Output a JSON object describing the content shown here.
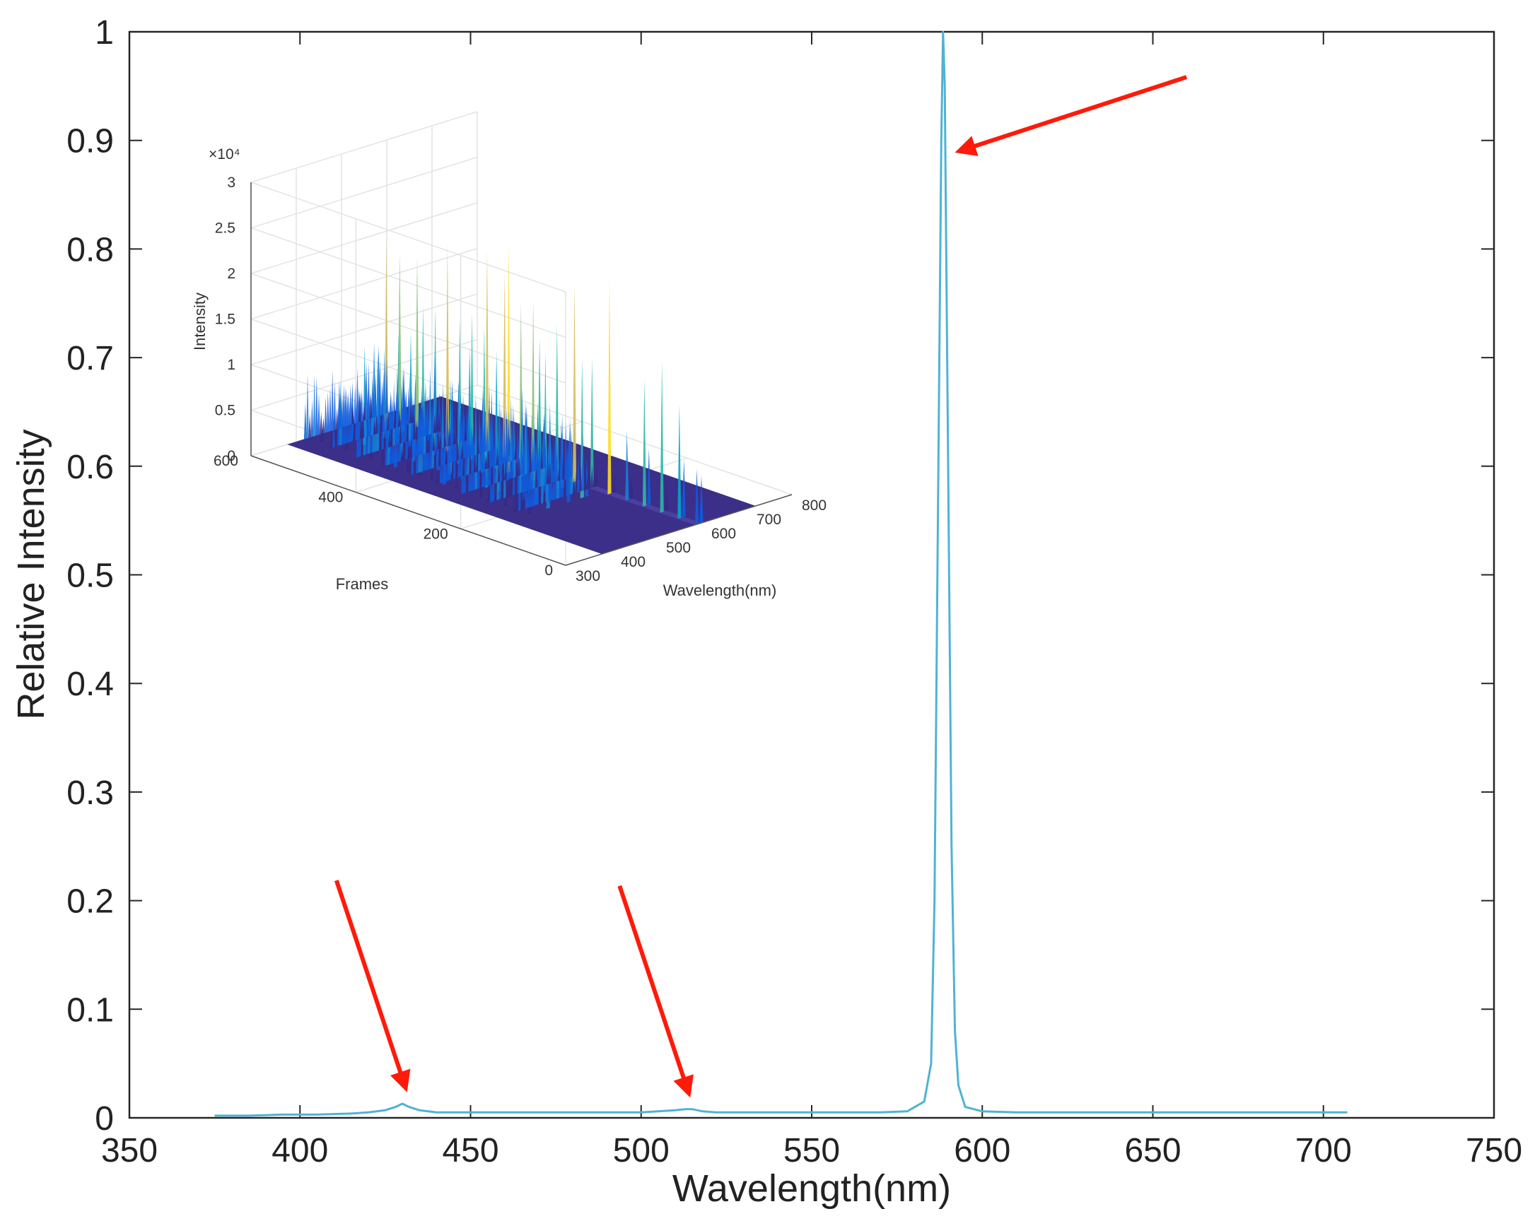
{
  "chart_data": [
    {
      "type": "line",
      "title": "",
      "xlabel": "Wavelength(nm)",
      "ylabel": "Relative Intensity",
      "xlim": [
        350,
        750
      ],
      "ylim": [
        0,
        1
      ],
      "xticks": [
        350,
        400,
        450,
        500,
        550,
        600,
        650,
        700,
        750
      ],
      "yticks": [
        0,
        0.1,
        0.2,
        0.3,
        0.4,
        0.5,
        0.6,
        0.7,
        0.8,
        0.9,
        1
      ],
      "xtick_labels": [
        "350",
        "400",
        "450",
        "500",
        "550",
        "600",
        "650",
        "700",
        "750"
      ],
      "ytick_labels": [
        "0",
        "0.1",
        "0.2",
        "0.3",
        "0.4",
        "0.5",
        "0.6",
        "0.7",
        "0.8",
        "0.9",
        "1"
      ],
      "grid": false,
      "series": [
        {
          "color": "#4fb3d3",
          "x": [
            375,
            385,
            395,
            405,
            415,
            420,
            425,
            428,
            430,
            432,
            435,
            440,
            450,
            460,
            470,
            480,
            490,
            500,
            505,
            510,
            513,
            515,
            518,
            522,
            530,
            540,
            550,
            560,
            570,
            578,
            583,
            585,
            586,
            587,
            588,
            588.5,
            589,
            590,
            591,
            592,
            593,
            595,
            600,
            610,
            620,
            640,
            660,
            680,
            700,
            707
          ],
          "y": [
            0.002,
            0.002,
            0.003,
            0.003,
            0.004,
            0.005,
            0.007,
            0.01,
            0.013,
            0.01,
            0.007,
            0.005,
            0.005,
            0.005,
            0.005,
            0.005,
            0.005,
            0.005,
            0.006,
            0.007,
            0.008,
            0.008,
            0.006,
            0.005,
            0.005,
            0.005,
            0.005,
            0.005,
            0.005,
            0.006,
            0.015,
            0.05,
            0.2,
            0.55,
            0.9,
            1.0,
            0.95,
            0.6,
            0.25,
            0.08,
            0.03,
            0.01,
            0.006,
            0.005,
            0.005,
            0.005,
            0.005,
            0.005,
            0.005,
            0.005
          ]
        }
      ],
      "annotations": [
        {
          "type": "arrow",
          "color": "#ff1a0a",
          "points_to": {
            "x": 431,
            "y": 0.013
          }
        },
        {
          "type": "arrow",
          "color": "#ff1a0a",
          "points_to": {
            "x": 514,
            "y": 0.008
          }
        },
        {
          "type": "arrow",
          "color": "#ff1a0a",
          "points_to": {
            "x": 589,
            "y": 0.89
          }
        }
      ]
    },
    {
      "type": "surface",
      "inset": true,
      "xlabel": "Wavelength(nm)",
      "ylabel": "Frames",
      "zlabel": "Intensity",
      "z_multiplier_label": "×10⁴",
      "xlim": [
        300,
        800
      ],
      "ylim": [
        0,
        600
      ],
      "zlim": [
        0,
        30000
      ],
      "xtick_labels": [
        "300",
        "400",
        "500",
        "600",
        "700",
        "800"
      ],
      "ytick_labels": [
        "0",
        "200",
        "400",
        "600"
      ],
      "ztick_labels": [
        "0",
        "0.5",
        "1",
        "1.5",
        "2",
        "2.5",
        "3"
      ],
      "colormap": [
        "#352a87",
        "#0f5cdd",
        "#1481d6",
        "#06a4ca",
        "#2eb7a4",
        "#87bf77",
        "#d1bb59",
        "#fedc23",
        "#f9fb0e"
      ],
      "baseline_color": "#3b2f8a",
      "peaks": [
        {
          "wavelength": 430,
          "frames": [
            180,
            600
          ],
          "max_intensity": 4000
        },
        {
          "wavelength": 470,
          "frames": [
            180,
            600
          ],
          "max_intensity": 11000
        },
        {
          "wavelength": 515,
          "frames": [
            180,
            600
          ],
          "max_intensity": 10000
        },
        {
          "wavelength": 545,
          "frames": [
            180,
            600
          ],
          "max_intensity": 26000
        },
        {
          "wavelength": 555,
          "frames": [
            180,
            600
          ],
          "max_intensity": 9000
        },
        {
          "wavelength": 590,
          "frames": [
            0,
            600
          ],
          "max_intensity": 24000
        },
        {
          "wavelength": 600,
          "frames": [
            0,
            600
          ],
          "max_intensity": 7000
        }
      ]
    }
  ]
}
